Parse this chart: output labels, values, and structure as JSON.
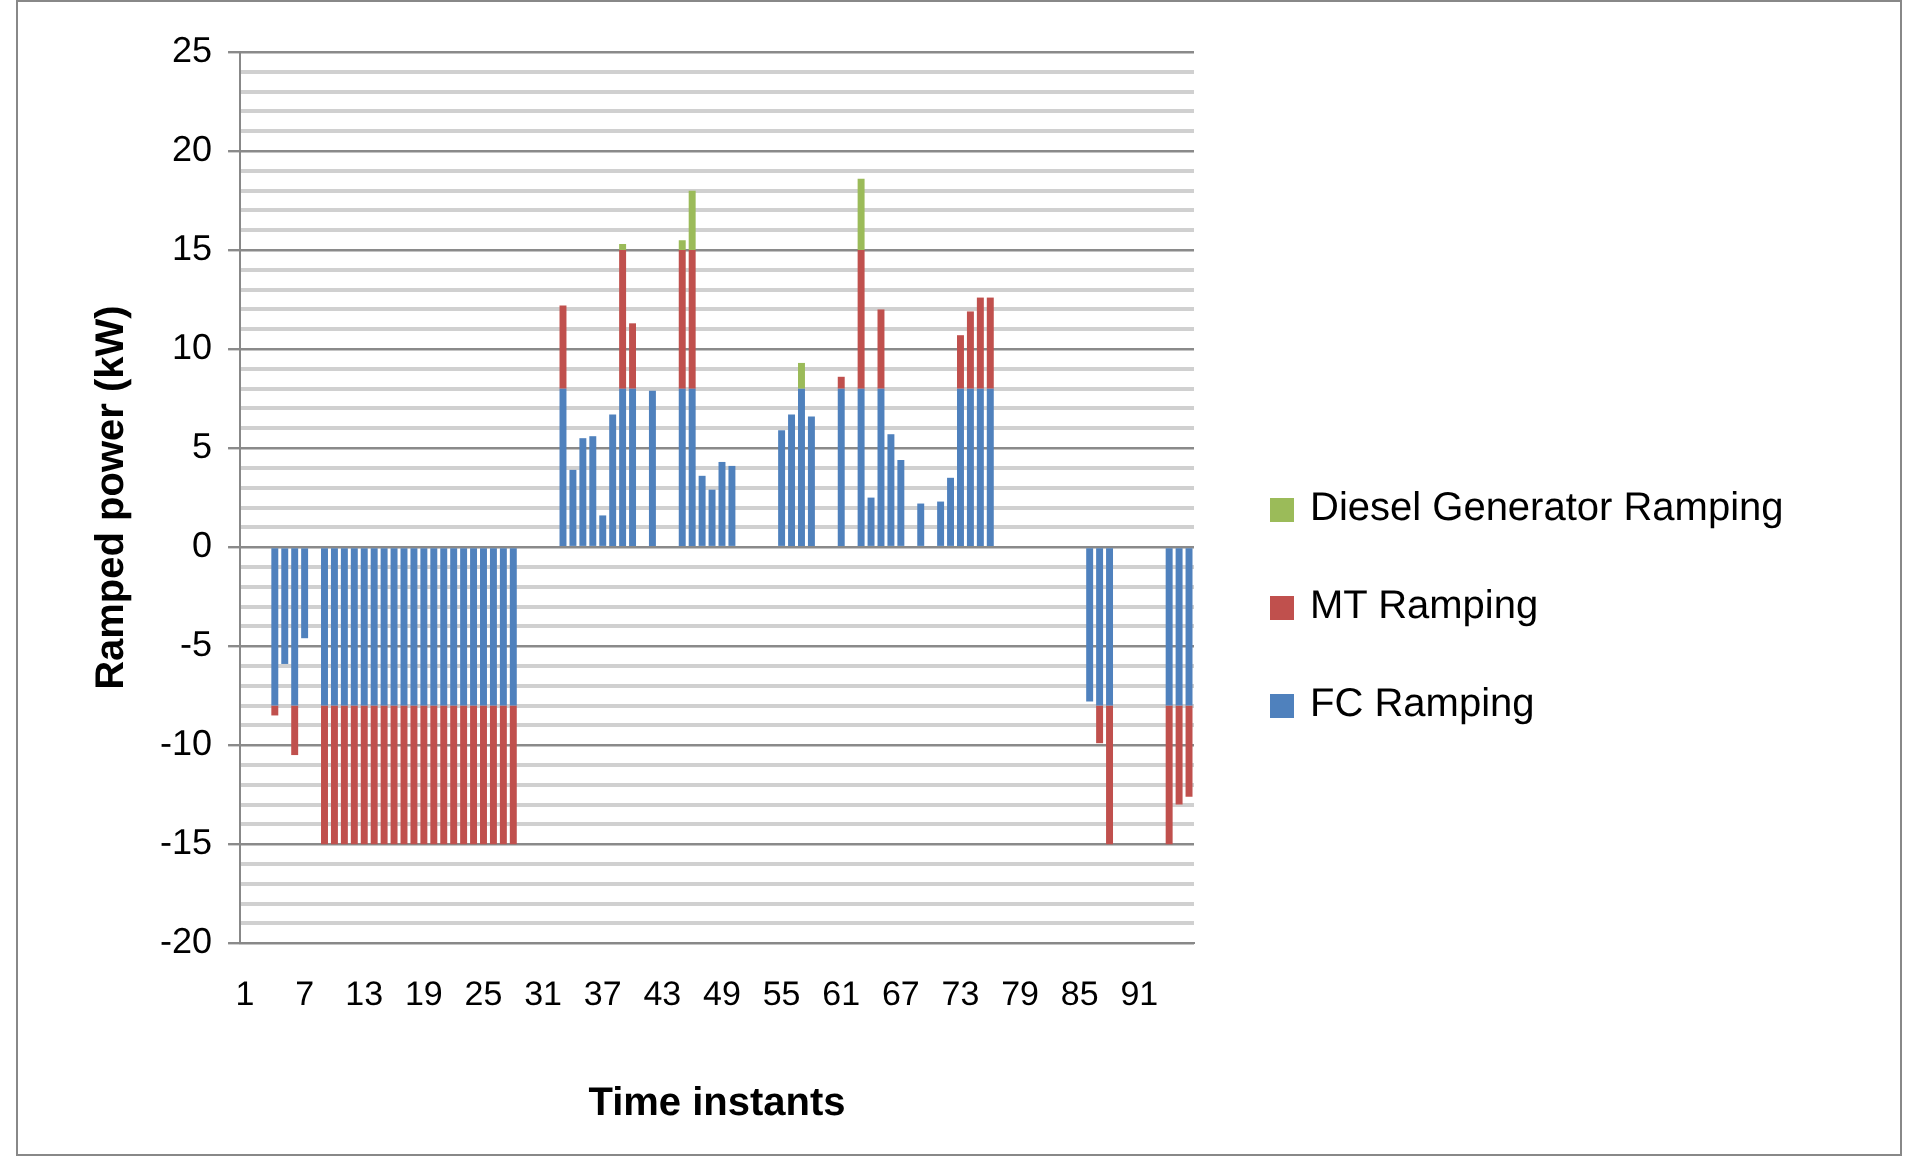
{
  "chart_data": {
    "type": "bar",
    "stacked": true,
    "xlabel": "Time instants",
    "ylabel": "Ramped power (kW)",
    "categories": [
      "1",
      null,
      null,
      null,
      null,
      null,
      "7",
      null,
      null,
      null,
      null,
      null,
      "13",
      null,
      null,
      null,
      null,
      null,
      "19",
      null,
      null,
      null,
      null,
      null,
      "25",
      null,
      null,
      null,
      null,
      null,
      "31",
      null,
      null,
      null,
      null,
      null,
      "37",
      null,
      null,
      null,
      null,
      null,
      "43",
      null,
      null,
      null,
      null,
      null,
      "49",
      null,
      null,
      null,
      null,
      null,
      "55",
      null,
      null,
      null,
      null,
      null,
      "61",
      null,
      null,
      null,
      null,
      null,
      "67",
      null,
      null,
      null,
      null,
      null,
      "73",
      null,
      null,
      null,
      null,
      null,
      "79",
      null,
      null,
      null,
      null,
      null,
      "85",
      null,
      null,
      null,
      null,
      null,
      "91",
      null,
      null,
      null,
      null,
      null
    ],
    "series": [
      {
        "name": "FC Ramping",
        "color": "#4f81bd",
        "values": [
          0,
          0,
          0,
          -8,
          -5.9,
          -8,
          -4.6,
          0,
          -8,
          -8,
          -8,
          -8,
          -8,
          -8,
          -8,
          -8,
          -8,
          -8,
          -8,
          -8,
          -8,
          -8,
          -8,
          -8,
          -8,
          -8,
          -8,
          -8,
          0,
          0,
          0,
          0,
          8,
          3.9,
          5.5,
          5.6,
          1.6,
          6.7,
          8,
          8,
          0,
          7.9,
          0,
          0,
          8,
          8,
          3.6,
          2.9,
          4.3,
          4.1,
          0,
          0,
          0,
          0,
          5.9,
          6.7,
          8,
          6.6,
          0,
          0,
          8,
          0,
          8,
          2.5,
          8,
          5.7,
          4.4,
          0,
          2.2,
          0,
          2.3,
          3.5,
          8,
          8,
          8,
          8,
          0,
          0,
          0,
          0,
          0,
          0,
          0,
          0,
          0,
          -7.8,
          -8,
          -8,
          0,
          0,
          0,
          0,
          0,
          -8,
          -8,
          -8
        ]
      },
      {
        "name": "MT Ramping",
        "color": "#c0504d",
        "values": [
          0,
          0,
          0,
          -0.5,
          0,
          -2.5,
          0,
          0,
          -7,
          -7,
          -7,
          -7,
          -7,
          -7,
          -7,
          -7,
          -7,
          -7,
          -7,
          -7,
          -7,
          -7,
          -7,
          -7,
          -7,
          -7,
          -7,
          -7,
          0,
          0,
          0,
          0,
          4.2,
          0,
          0,
          0,
          0,
          0,
          7,
          3.3,
          0,
          0,
          0,
          0,
          7,
          7,
          0,
          0,
          0,
          0,
          0,
          0,
          0,
          0,
          0,
          0,
          0,
          0,
          0,
          0,
          0.6,
          0,
          7,
          0,
          4,
          0,
          0,
          0,
          0,
          0,
          0,
          0,
          2.7,
          3.9,
          4.6,
          4.6,
          0,
          0,
          0,
          0,
          0,
          0,
          0,
          0,
          0,
          0,
          -1.9,
          -7,
          0,
          0,
          0,
          0,
          0,
          -7,
          -5,
          -4.6
        ]
      },
      {
        "name": "Diesel Generator Ramping",
        "color": "#9bbb59",
        "values": [
          0,
          0,
          0,
          0,
          0,
          0,
          0,
          0,
          0,
          0,
          0,
          0,
          0,
          0,
          0,
          0,
          0,
          0,
          0,
          0,
          0,
          0,
          0,
          0,
          0,
          0,
          0,
          0,
          0,
          0,
          0,
          0,
          0,
          0,
          0,
          0,
          0,
          0,
          0.3,
          0,
          0,
          0,
          0,
          0,
          0.5,
          3,
          0,
          0,
          0,
          0,
          0,
          0,
          0,
          0,
          0,
          0,
          1.3,
          0,
          0,
          0,
          0,
          0,
          3.6,
          0,
          0,
          0,
          0,
          0,
          0,
          0,
          0,
          0,
          0,
          0,
          0,
          0,
          0,
          0,
          0,
          0,
          0,
          0,
          0,
          0,
          0,
          0,
          0,
          0,
          0,
          0,
          0,
          0,
          0,
          0,
          0,
          0
        ]
      }
    ],
    "ylim": [
      -20,
      25
    ],
    "yticks": [
      -20,
      {
        "value": -19,
        "label": null
      },
      {
        "value": -18,
        "label": null
      },
      {
        "value": -17,
        "label": null
      },
      {
        "value": -16,
        "label": null
      },
      -15,
      {
        "value": -14,
        "label": null
      },
      {
        "value": -13,
        "label": null
      },
      {
        "value": -12,
        "label": null
      },
      {
        "value": -11,
        "label": null
      },
      -10,
      {
        "value": -9,
        "label": null
      },
      {
        "value": -8,
        "label": null
      },
      {
        "value": -7,
        "label": null
      },
      {
        "value": -6,
        "label": null
      },
      -5,
      {
        "value": -4,
        "label": null
      },
      {
        "value": -3,
        "label": null
      },
      {
        "value": -2,
        "label": null
      },
      {
        "value": -1,
        "label": null
      },
      0,
      {
        "value": 1,
        "label": null
      },
      {
        "value": 2,
        "label": null
      },
      {
        "value": 3,
        "label": null
      },
      {
        "value": 4,
        "label": null
      },
      5,
      {
        "value": 6,
        "label": null
      },
      {
        "value": 7,
        "label": null
      },
      {
        "value": 8,
        "label": null
      },
      {
        "value": 9,
        "label": null
      },
      10,
      {
        "value": 11,
        "label": null
      },
      {
        "value": 12,
        "label": null
      },
      {
        "value": 13,
        "label": null
      },
      {
        "value": 14,
        "label": null
      },
      15,
      {
        "value": 16,
        "label": null
      },
      {
        "value": 17,
        "label": null
      },
      {
        "value": 18,
        "label": null
      },
      {
        "value": 19,
        "label": null
      },
      20,
      {
        "value": 21,
        "label": null
      },
      {
        "value": 22,
        "label": null
      },
      {
        "value": 23,
        "label": null
      },
      {
        "value": 24,
        "label": null
      },
      25
    ],
    "grid": "y",
    "legend": "right"
  }
}
